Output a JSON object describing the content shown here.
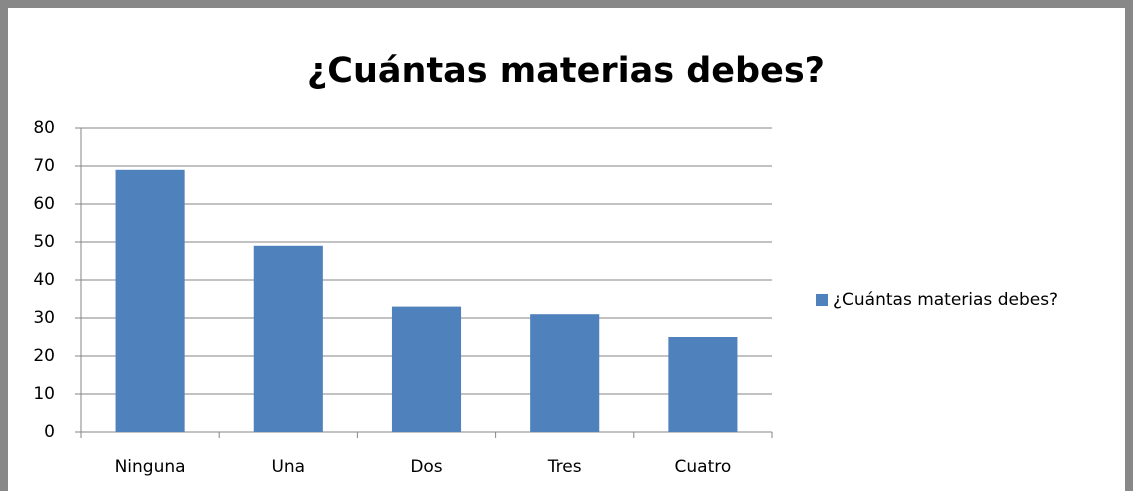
{
  "chart_data": {
    "type": "bar",
    "title": "¿Cuántas materias debes?",
    "categories": [
      "Ninguna",
      "Una",
      "Dos",
      "Tres",
      "Cuatro"
    ],
    "series": [
      {
        "name": "¿Cuántas materias debes?",
        "color": "#4f81bd",
        "values": [
          69,
          49,
          33,
          31,
          25
        ]
      }
    ],
    "ylim": [
      0,
      80
    ],
    "yticks": [
      0,
      10,
      20,
      30,
      40,
      50,
      60,
      70,
      80
    ],
    "grid": true,
    "legend": "right"
  }
}
